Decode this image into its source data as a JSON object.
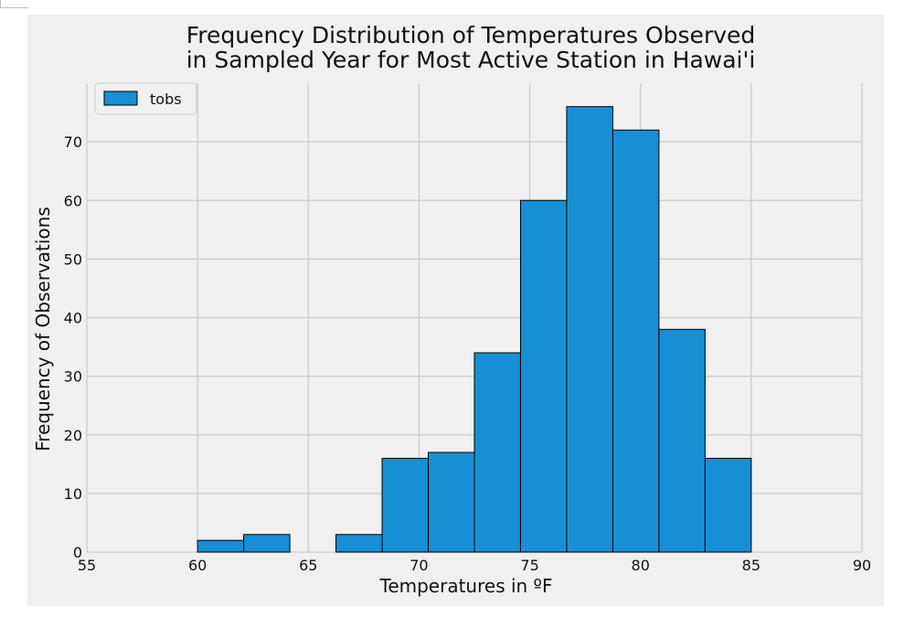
{
  "chart_data": {
    "type": "bar",
    "title": "Frequency Distribution of Temperatures Observed",
    "subtitle": "in Sampled Year for Most Active Station in Hawai'i",
    "xlabel": "Temperatures in ºF",
    "ylabel": "Frequency of Observations",
    "xlim": [
      55,
      90
    ],
    "ylim": [
      0,
      80
    ],
    "x_ticks": [
      55,
      60,
      65,
      70,
      75,
      80,
      85,
      90
    ],
    "y_ticks": [
      0,
      10,
      20,
      30,
      40,
      50,
      60,
      70
    ],
    "bin_edges": [
      60.0,
      62.083,
      64.167,
      66.25,
      68.333,
      70.417,
      72.5,
      74.583,
      76.667,
      78.75,
      80.833,
      82.917,
      85.0
    ],
    "counts": [
      2,
      3,
      0,
      3,
      16,
      17,
      34,
      60,
      76,
      72,
      38,
      16
    ],
    "series": [
      {
        "name": "tobs",
        "color": "#178fd5"
      }
    ],
    "grid": true,
    "legend_position": "top-left"
  }
}
